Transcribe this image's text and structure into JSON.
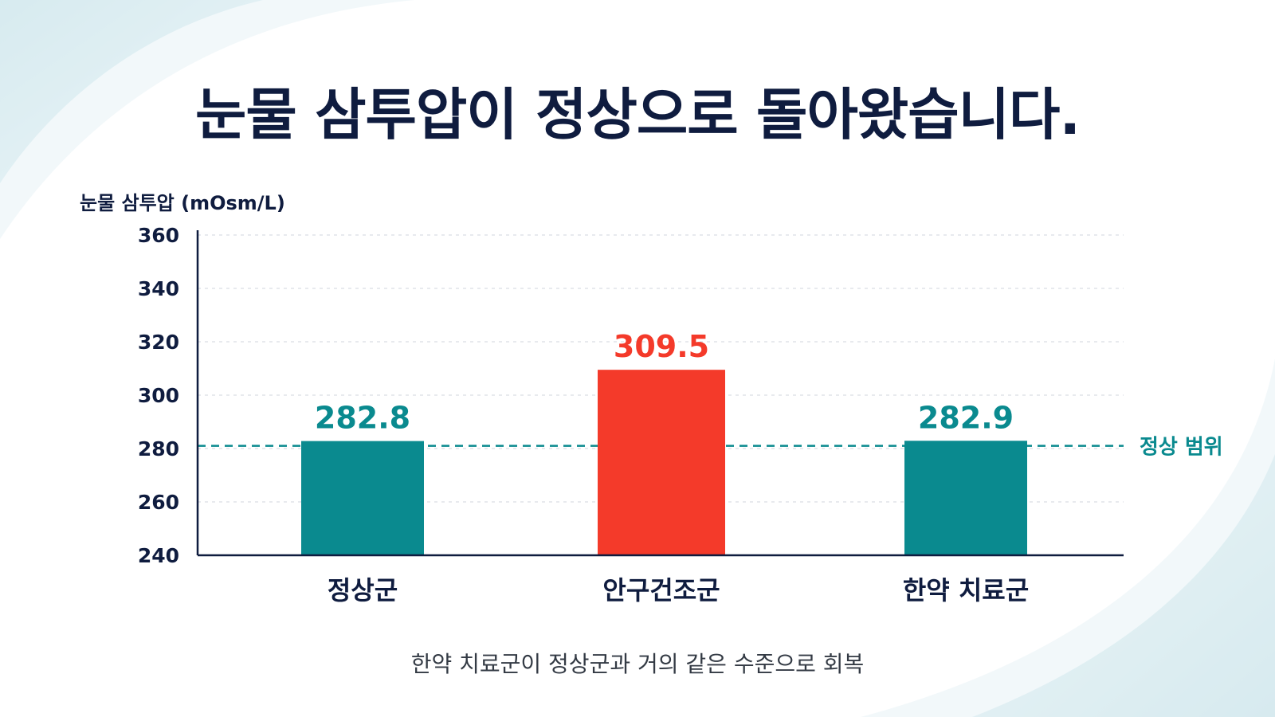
{
  "headline": "눈물 삼투압이 정상으로 돌아왔습니다.",
  "footnote": "한약 치료군이 정상군과 거의 같은 수준으로 회복",
  "colors": {
    "title": "#0f1c3f",
    "teal": "#0a8a8f",
    "red": "#f43a2a",
    "axis": "#0f1c3f",
    "grid": "#d9dde3"
  },
  "chart_data": {
    "type": "bar",
    "title": "",
    "ylabel": "눈물 삼투압 (mOsm/L)",
    "xlabel": "",
    "ylim": [
      240,
      360
    ],
    "yticks": [
      240,
      260,
      280,
      300,
      320,
      340,
      360
    ],
    "categories": [
      "정상군",
      "안구건조군",
      "한약 치료군"
    ],
    "values": [
      282.8,
      309.5,
      282.9
    ],
    "value_labels": [
      "282.8",
      "309.5",
      "282.9"
    ],
    "bar_colors": [
      "#0a8a8f",
      "#f43a2a",
      "#0a8a8f"
    ],
    "reference_line": {
      "value": 281,
      "label": "정상 범위",
      "style": "dashed",
      "color": "#0a8a8f"
    },
    "grid": true,
    "legend": "none"
  }
}
